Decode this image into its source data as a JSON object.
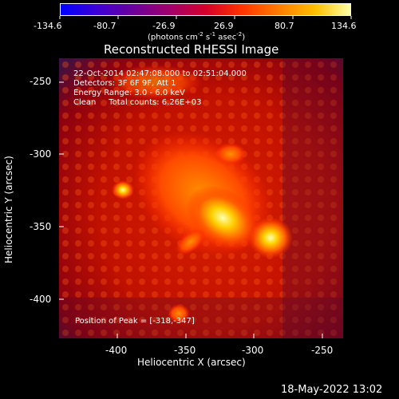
{
  "colorbar": {
    "ticks": [
      "-134.6",
      "-80.7",
      "-26.9",
      "26.9",
      "80.7",
      "134.6"
    ],
    "unit_label": "(photons cm",
    "unit_exp1": "-2",
    "unit_mid": " s",
    "unit_exp2": "-1",
    "unit_mid2": " asec",
    "unit_exp3": "-2",
    "unit_end": ")"
  },
  "title": "Reconstructed RHESSI Image",
  "info": {
    "time_range": "22-Oct-2014 02:47:08.000 to 02:51:04.000",
    "detectors": "Detectors: 3F 6F 9F, Att 1",
    "energy": "Energy Range: 3.0 - 6.0 keV",
    "clean": "Clean     Total counts: 6.26E+03",
    "peak": "Position of Peak = [-318,-347]"
  },
  "axes": {
    "xlabel": "Heliocentric X (arcsec)",
    "ylabel": "Heliocentric Y (arcsec)",
    "xticks": [
      "-400",
      "-350",
      "-300",
      "-250"
    ],
    "yticks": [
      "-250",
      "-300",
      "-350",
      "-400"
    ]
  },
  "footer": {
    "timestamp": "18-May-2022 13:02"
  }
}
